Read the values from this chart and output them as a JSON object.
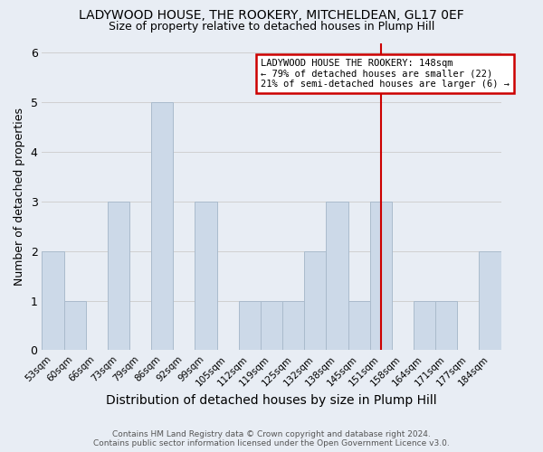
{
  "title": "LADYWOOD HOUSE, THE ROOKERY, MITCHELDEAN, GL17 0EF",
  "subtitle": "Size of property relative to detached houses in Plump Hill",
  "xlabel": "Distribution of detached houses by size in Plump Hill",
  "ylabel": "Number of detached properties",
  "categories": [
    "53sqm",
    "60sqm",
    "66sqm",
    "73sqm",
    "79sqm",
    "86sqm",
    "92sqm",
    "99sqm",
    "105sqm",
    "112sqm",
    "119sqm",
    "125sqm",
    "132sqm",
    "138sqm",
    "145sqm",
    "151sqm",
    "158sqm",
    "164sqm",
    "171sqm",
    "177sqm",
    "184sqm"
  ],
  "values": [
    2,
    1,
    0,
    3,
    0,
    5,
    0,
    3,
    0,
    1,
    1,
    1,
    2,
    3,
    1,
    3,
    0,
    1,
    1,
    0,
    2
  ],
  "bar_color": "#ccd9e8",
  "bar_edge_color": "#aabbcc",
  "grid_color": "#d0d0d0",
  "bg_color": "#e8edf4",
  "vline_x": 15.0,
  "vline_color": "#cc0000",
  "annotation_line1": "LADYWOOD HOUSE THE ROOKERY: 148sqm",
  "annotation_line2": "← 79% of detached houses are smaller (22)",
  "annotation_line3": "21% of semi-detached houses are larger (6) →",
  "box_color": "#cc0000",
  "footer": "Contains HM Land Registry data © Crown copyright and database right 2024.\nContains public sector information licensed under the Open Government Licence v3.0.",
  "ylim": [
    0,
    6.2
  ],
  "yticks": [
    0,
    1,
    2,
    3,
    4,
    5,
    6
  ],
  "title_fontsize": 10,
  "subtitle_fontsize": 9
}
